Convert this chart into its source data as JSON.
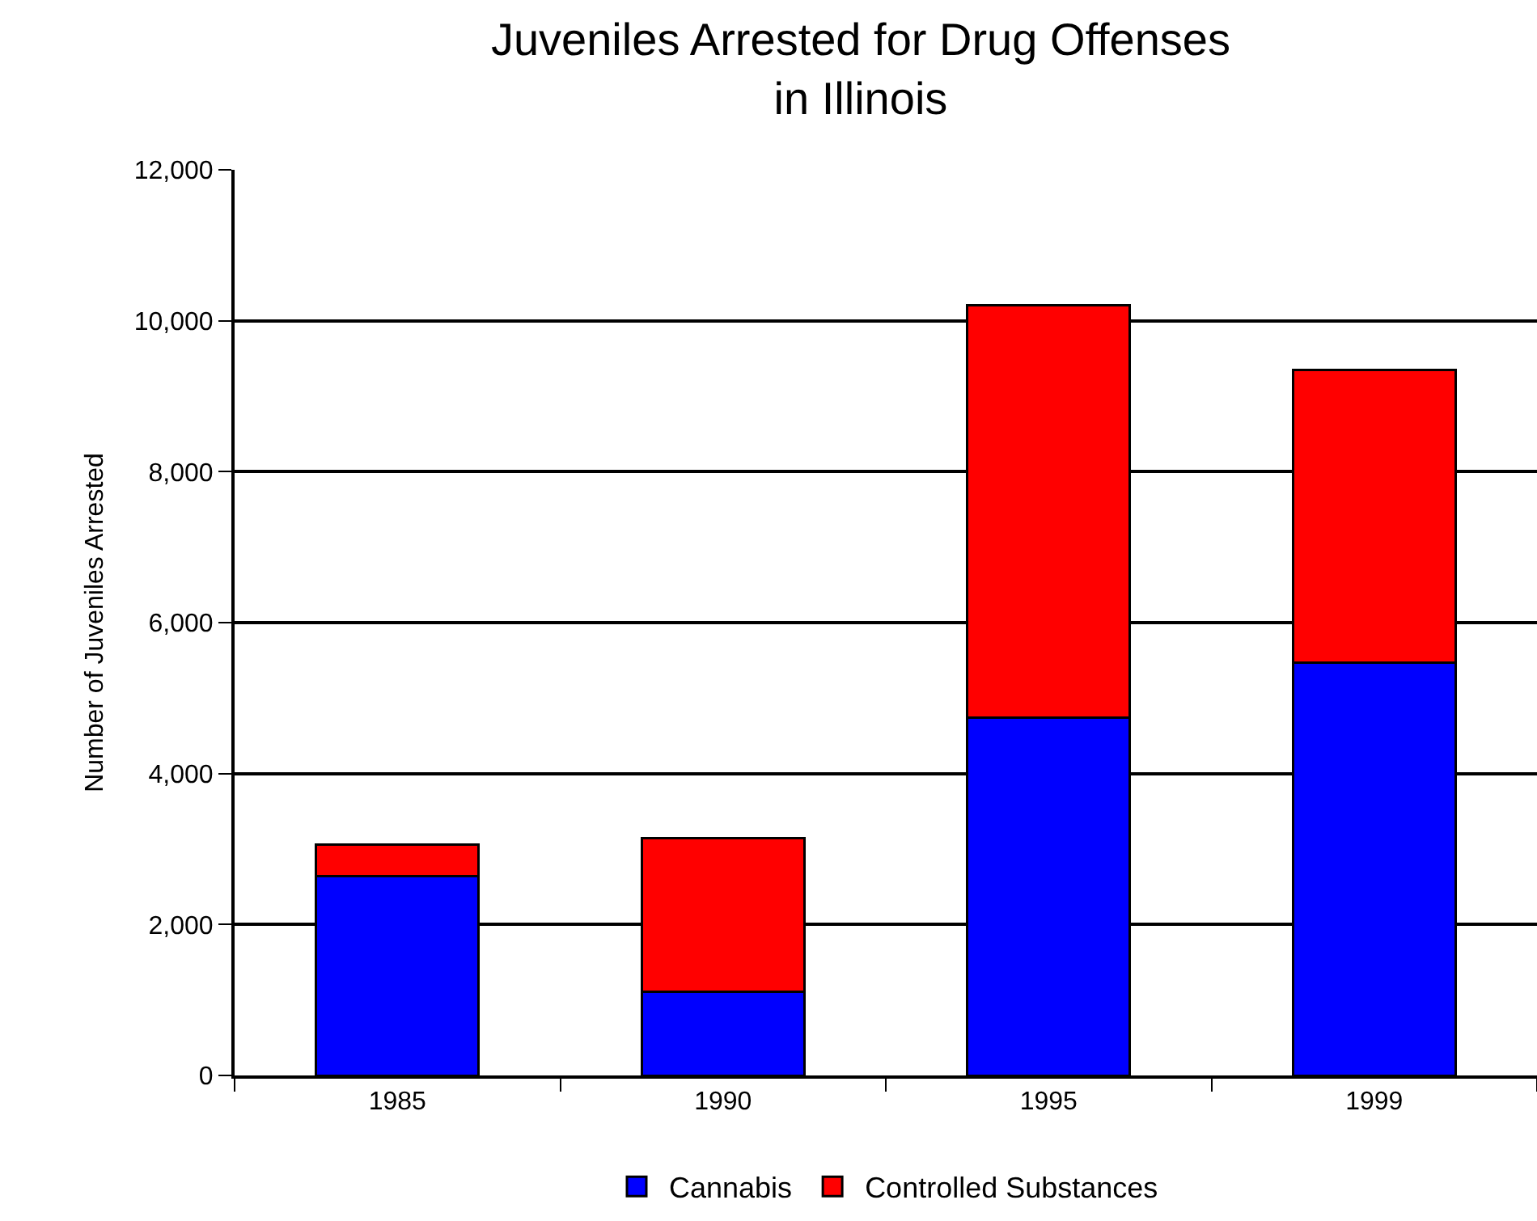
{
  "chart_data": {
    "type": "bar",
    "title": "Juveniles Arrested for Drug Offenses\nin Illinois",
    "ylabel": "Number of Juveniles Arrested",
    "categories": [
      "1985",
      "1990",
      "1995",
      "1999"
    ],
    "series": [
      {
        "name": "Cannabis",
        "color": "#0000ff",
        "values": [
          2640,
          1110,
          4740,
          5470
        ]
      },
      {
        "name": "Controlled Substances",
        "color": "#ff0000",
        "values": [
          420,
          2040,
          5470,
          3880
        ]
      }
    ],
    "stacked": true,
    "ylim": [
      0,
      12000
    ],
    "yticks": [
      {
        "value": 0,
        "label": "0"
      },
      {
        "value": 2000,
        "label": "2,000"
      },
      {
        "value": 4000,
        "label": "4,000"
      },
      {
        "value": 6000,
        "label": "6,000"
      },
      {
        "value": 8000,
        "label": "8,000"
      },
      {
        "value": 10000,
        "label": "10,000"
      },
      {
        "value": 12000,
        "label": "12,000"
      }
    ],
    "grid": "y",
    "legend": "bottom"
  }
}
